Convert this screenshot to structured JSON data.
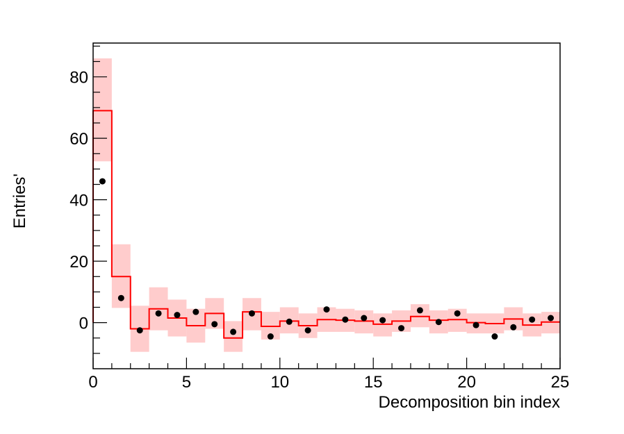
{
  "chart_data": {
    "type": "histogram",
    "xlabel": "Decomposition bin index",
    "ylabel": "Entries'",
    "xlim": [
      0,
      25
    ],
    "ylim": [
      -15,
      91
    ],
    "x_ticks": [
      0,
      5,
      10,
      15,
      20,
      25
    ],
    "y_ticks": [
      0,
      20,
      40,
      60,
      80
    ],
    "grid": false,
    "legend": "none",
    "colors": {
      "line": "#ff0000",
      "band": "#ffcccc",
      "points": "#000000",
      "axes": "#000000"
    },
    "series": [
      {
        "style": "red-step-line-with-band",
        "bin_edges": [
          0,
          1,
          2,
          3,
          4,
          5,
          6,
          7,
          8,
          9,
          10,
          11,
          12,
          13,
          14,
          15,
          16,
          17,
          18,
          19,
          20,
          21,
          22,
          23,
          24,
          25
        ],
        "values": [
          69.0,
          15.0,
          -2.0,
          4.5,
          1.5,
          -1.0,
          3.0,
          -5.0,
          3.5,
          -1.2,
          0.5,
          -1.0,
          1.0,
          0.8,
          0.5,
          -0.5,
          0.5,
          2.0,
          0.8,
          1.0,
          0.0,
          -0.3,
          1.2,
          -0.8,
          0.2
        ],
        "band_low": [
          52.5,
          4.8,
          -9.5,
          -2.5,
          -4.5,
          -6.5,
          -2.0,
          -9.5,
          -2.5,
          -5.5,
          -3.5,
          -5.0,
          -3.0,
          -3.0,
          -3.5,
          -4.5,
          -3.0,
          -1.5,
          -3.5,
          -3.0,
          -3.5,
          -3.5,
          -2.5,
          -4.5,
          -3.5
        ],
        "band_high": [
          86.0,
          25.5,
          5.5,
          11.5,
          7.5,
          4.5,
          8.0,
          0.5,
          8.0,
          3.5,
          5.0,
          3.0,
          5.0,
          4.5,
          4.0,
          3.0,
          4.0,
          6.0,
          4.0,
          4.5,
          3.0,
          3.0,
          5.0,
          3.0,
          3.5
        ]
      },
      {
        "style": "black-points",
        "x": [
          0.5,
          1.5,
          2.5,
          3.5,
          4.5,
          5.5,
          6.5,
          7.5,
          8.5,
          9.5,
          10.5,
          11.5,
          12.5,
          13.5,
          14.5,
          15.5,
          16.5,
          17.5,
          18.5,
          19.5,
          20.5,
          21.5,
          22.5,
          23.5,
          24.5
        ],
        "values": [
          46.0,
          8.0,
          -2.5,
          3.0,
          2.5,
          3.5,
          -0.5,
          -3.0,
          3.0,
          -4.5,
          0.3,
          -2.5,
          4.3,
          1.0,
          1.5,
          0.8,
          -1.8,
          4.0,
          0.2,
          3.0,
          -0.8,
          -4.5,
          -1.5,
          1.0,
          1.5
        ]
      }
    ]
  }
}
